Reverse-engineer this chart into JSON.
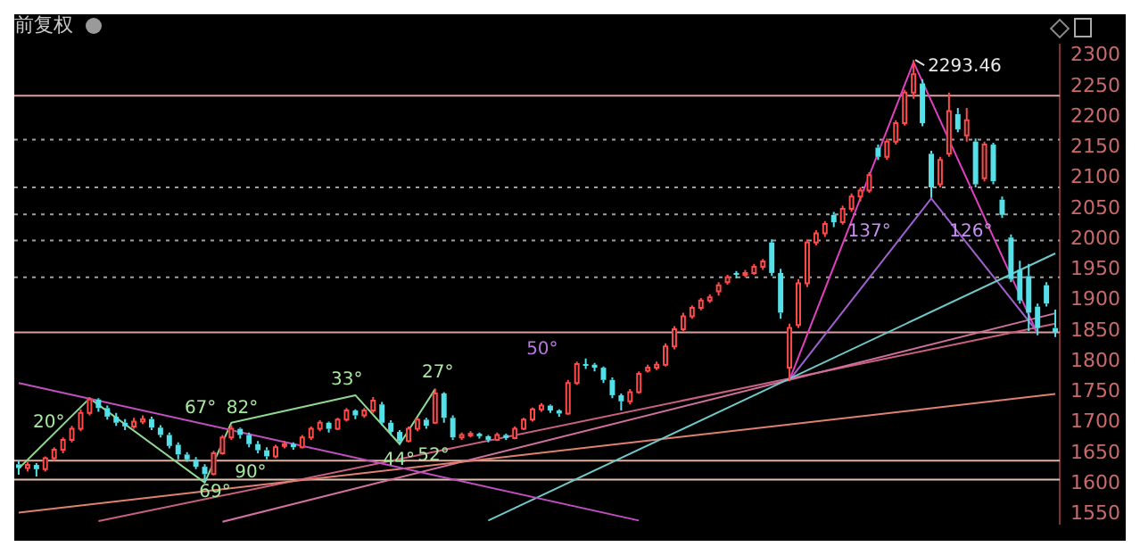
{
  "chart_data": {
    "type": "candlestick",
    "title": "前复权",
    "categories": [
      null,
      null,
      null,
      null,
      null,
      null,
      null,
      null,
      null,
      null,
      null,
      null,
      null,
      null,
      null,
      null,
      null,
      null,
      null,
      null,
      null,
      null,
      null,
      null,
      null,
      null,
      null,
      null,
      null,
      null,
      null,
      null,
      null,
      null,
      null,
      null,
      null,
      null,
      null,
      null,
      null,
      null,
      null,
      null,
      null,
      null,
      null,
      null,
      null,
      null,
      null,
      null,
      null,
      null,
      null,
      null,
      null,
      null,
      null,
      null,
      null,
      null,
      null,
      null,
      null,
      null,
      null,
      null,
      null,
      null,
      null,
      null,
      null,
      null,
      null,
      null,
      null,
      null,
      null,
      null,
      null,
      null,
      null,
      null,
      null,
      null,
      null,
      null,
      null,
      null,
      null,
      null,
      null,
      null,
      null,
      null,
      null,
      null,
      null,
      null,
      null,
      null,
      null,
      null,
      null,
      null,
      null,
      null,
      null,
      null,
      null,
      null,
      null,
      null,
      null,
      null,
      null,
      null
    ],
    "ohlc": [
      [
        1632,
        1638,
        1615,
        1626
      ],
      [
        1626,
        1636,
        1620,
        1631
      ],
      [
        1631,
        1634,
        1612,
        1624
      ],
      [
        1624,
        1645,
        1620,
        1642
      ],
      [
        1642,
        1660,
        1638,
        1656
      ],
      [
        1656,
        1676,
        1650,
        1672
      ],
      [
        1672,
        1695,
        1668,
        1690
      ],
      [
        1690,
        1722,
        1686,
        1716
      ],
      [
        1716,
        1742,
        1712,
        1738
      ],
      [
        1738,
        1740,
        1718,
        1724
      ],
      [
        1724,
        1728,
        1705,
        1710
      ],
      [
        1710,
        1716,
        1695,
        1700
      ],
      [
        1700,
        1706,
        1688,
        1694
      ],
      [
        1694,
        1708,
        1690,
        1702
      ],
      [
        1702,
        1712,
        1698,
        1706
      ],
      [
        1706,
        1710,
        1688,
        1692
      ],
      [
        1692,
        1696,
        1676,
        1680
      ],
      [
        1680,
        1684,
        1658,
        1662
      ],
      [
        1664,
        1668,
        1640,
        1648
      ],
      [
        1648,
        1652,
        1636,
        1640
      ],
      [
        1640,
        1644,
        1624,
        1628
      ],
      [
        1628,
        1632,
        1603,
        1616
      ],
      [
        1616,
        1654,
        1614,
        1650
      ],
      [
        1650,
        1680,
        1648,
        1676
      ],
      [
        1676,
        1696,
        1672,
        1690
      ],
      [
        1690,
        1692,
        1674,
        1680
      ],
      [
        1680,
        1684,
        1660,
        1665
      ],
      [
        1665,
        1670,
        1650,
        1655
      ],
      [
        1655,
        1660,
        1640,
        1645
      ],
      [
        1645,
        1664,
        1642,
        1660
      ],
      [
        1662,
        1670,
        1658,
        1665
      ],
      [
        1665,
        1668,
        1656,
        1660
      ],
      [
        1660,
        1680,
        1658,
        1676
      ],
      [
        1676,
        1694,
        1672,
        1690
      ],
      [
        1690,
        1704,
        1686,
        1700
      ],
      [
        1700,
        1702,
        1684,
        1690
      ],
      [
        1690,
        1708,
        1688,
        1705
      ],
      [
        1705,
        1724,
        1702,
        1720
      ],
      [
        1720,
        1722,
        1706,
        1712
      ],
      [
        1712,
        1724,
        1708,
        1720
      ],
      [
        1720,
        1742,
        1716,
        1736
      ],
      [
        1730,
        1734,
        1696,
        1700
      ],
      [
        1700,
        1704,
        1680,
        1685
      ],
      [
        1685,
        1688,
        1664,
        1670
      ],
      [
        1670,
        1694,
        1668,
        1690
      ],
      [
        1690,
        1708,
        1686,
        1705
      ],
      [
        1705,
        1708,
        1690,
        1695
      ],
      [
        1700,
        1756,
        1698,
        1748
      ],
      [
        1748,
        1750,
        1700,
        1708
      ],
      [
        1708,
        1712,
        1672,
        1676
      ],
      [
        1676,
        1684,
        1672,
        1680
      ],
      [
        1680,
        1686,
        1676,
        1682
      ],
      [
        1682,
        1684,
        1674,
        1678
      ],
      [
        1678,
        1680,
        1668,
        1672
      ],
      [
        1672,
        1684,
        1670,
        1680
      ],
      [
        1680,
        1682,
        1672,
        1675
      ],
      [
        1675,
        1694,
        1673,
        1690
      ],
      [
        1690,
        1708,
        1688,
        1705
      ],
      [
        1705,
        1725,
        1702,
        1722
      ],
      [
        1722,
        1732,
        1718,
        1728
      ],
      [
        1728,
        1730,
        1716,
        1720
      ],
      [
        1720,
        1722,
        1710,
        1715
      ],
      [
        1715,
        1770,
        1713,
        1765
      ],
      [
        1765,
        1800,
        1762,
        1796
      ],
      [
        1796,
        1805,
        1788,
        1795
      ],
      [
        1795,
        1798,
        1784,
        1790
      ],
      [
        1790,
        1792,
        1765,
        1770
      ],
      [
        1770,
        1774,
        1740,
        1745
      ],
      [
        1745,
        1748,
        1720,
        1735
      ],
      [
        1735,
        1755,
        1730,
        1750
      ],
      [
        1750,
        1784,
        1748,
        1780
      ],
      [
        1785,
        1795,
        1782,
        1790
      ],
      [
        1790,
        1800,
        1786,
        1795
      ],
      [
        1795,
        1830,
        1792,
        1825
      ],
      [
        1825,
        1858,
        1820,
        1853
      ],
      [
        1853,
        1880,
        1850,
        1874
      ],
      [
        1874,
        1892,
        1870,
        1888
      ],
      [
        1888,
        1904,
        1884,
        1900
      ],
      [
        1900,
        1910,
        1896,
        1905
      ],
      [
        1915,
        1930,
        1908,
        1925
      ],
      [
        1930,
        1942,
        1926,
        1938
      ],
      [
        1945,
        1948,
        1936,
        1942
      ],
      [
        1942,
        1950,
        1938,
        1945
      ],
      [
        1945,
        1960,
        1942,
        1955
      ],
      [
        1955,
        1968,
        1950,
        1964
      ],
      [
        1995,
        2000,
        1940,
        1945
      ],
      [
        1945,
        1952,
        1870,
        1880
      ],
      [
        1790,
        1862,
        1768,
        1855
      ],
      [
        1860,
        1935,
        1855,
        1928
      ],
      [
        1928,
        2000,
        1922,
        1995
      ],
      [
        1995,
        2015,
        1990,
        2010
      ],
      [
        2010,
        2030,
        2004,
        2025
      ],
      [
        2040,
        2045,
        2020,
        2028
      ],
      [
        2028,
        2055,
        2024,
        2050
      ],
      [
        2050,
        2075,
        2045,
        2070
      ],
      [
        2070,
        2085,
        2062,
        2080
      ],
      [
        2080,
        2110,
        2076,
        2105
      ],
      [
        2150,
        2155,
        2130,
        2135
      ],
      [
        2135,
        2165,
        2130,
        2160
      ],
      [
        2160,
        2195,
        2155,
        2190
      ],
      [
        2190,
        2245,
        2186,
        2240
      ],
      [
        2240,
        2293.46,
        2230,
        2270
      ],
      [
        2255,
        2262,
        2185,
        2190
      ],
      [
        2140,
        2145,
        2068,
        2085
      ],
      [
        2090,
        2135,
        2085,
        2130
      ],
      [
        2140,
        2240,
        2135,
        2210
      ],
      [
        2205,
        2215,
        2175,
        2180
      ],
      [
        2170,
        2215,
        2160,
        2195
      ],
      [
        2160,
        2165,
        2085,
        2090
      ],
      [
        2100,
        2160,
        2095,
        2155
      ],
      [
        2155,
        2158,
        2090,
        2095
      ],
      [
        2065,
        2070,
        2035,
        2040
      ],
      [
        2003,
        2008,
        1930,
        1935
      ],
      [
        1950,
        1965,
        1895,
        1900
      ],
      [
        1940,
        1960,
        1850,
        1880
      ],
      [
        1890,
        1895,
        1843,
        1855
      ],
      [
        1925,
        1930,
        1890,
        1895
      ],
      [
        1855,
        1885,
        1840,
        1848
      ]
    ],
    "series": [
      {
        "type": "line",
        "color": "#c050c0",
        "values": [
          1765,
          null,
          null,
          null,
          null,
          null,
          null,
          null,
          null,
          null,
          null,
          null,
          null,
          null,
          null,
          null,
          null,
          null,
          null,
          null,
          null,
          null,
          null,
          null,
          null,
          null,
          null,
          null,
          null,
          null,
          null,
          null,
          null,
          null,
          null,
          null,
          null,
          null,
          null,
          null,
          null,
          null,
          null,
          null,
          null,
          null,
          null,
          null,
          null,
          null,
          null,
          null,
          null,
          null,
          null,
          null,
          null,
          null,
          null,
          null,
          null,
          null,
          null,
          null,
          null,
          null,
          null,
          null,
          null,
          null,
          1540,
          null,
          null,
          null,
          null,
          null,
          null,
          null,
          null,
          null,
          null,
          null,
          null,
          null,
          null,
          null,
          null,
          null,
          null,
          null,
          null,
          null,
          null,
          null,
          null,
          null,
          null,
          null,
          null,
          null,
          null,
          null,
          null,
          null,
          null,
          null,
          null,
          null,
          null,
          null,
          null,
          null,
          null,
          null,
          null,
          null,
          null,
          null
        ]
      },
      {
        "type": "line",
        "color": "#70c8c8",
        "values": [
          null,
          null,
          null,
          null,
          null,
          null,
          null,
          null,
          null,
          null,
          null,
          null,
          null,
          null,
          null,
          null,
          null,
          null,
          null,
          null,
          null,
          null,
          null,
          null,
          null,
          null,
          null,
          null,
          null,
          null,
          null,
          null,
          null,
          null,
          null,
          null,
          null,
          null,
          null,
          null,
          null,
          null,
          null,
          null,
          null,
          null,
          null,
          null,
          null,
          null,
          null,
          null,
          null,
          1540,
          null,
          null,
          null,
          null,
          null,
          null,
          null,
          null,
          null,
          null,
          null,
          null,
          null,
          null,
          null,
          null,
          null,
          null,
          null,
          null,
          null,
          null,
          null,
          null,
          null,
          null,
          null,
          null,
          null,
          null,
          null,
          null,
          null,
          null,
          null,
          null,
          null,
          null,
          null,
          null,
          null,
          null,
          null,
          null,
          null,
          null,
          null,
          null,
          null,
          null,
          null,
          null,
          null,
          null,
          null,
          null,
          null,
          null,
          null,
          null,
          null,
          null,
          null,
          1977
        ]
      },
      {
        "type": "line",
        "color": "#e08070",
        "values": [
          1553,
          null,
          null,
          null,
          null,
          null,
          null,
          null,
          null,
          null,
          null,
          null,
          null,
          null,
          null,
          null,
          null,
          null,
          null,
          null,
          null,
          null,
          null,
          null,
          null,
          null,
          null,
          null,
          null,
          null,
          null,
          null,
          null,
          null,
          null,
          null,
          null,
          null,
          null,
          null,
          null,
          null,
          null,
          null,
          null,
          null,
          null,
          null,
          null,
          null,
          null,
          null,
          null,
          null,
          null,
          null,
          null,
          null,
          null,
          null,
          null,
          null,
          null,
          null,
          null,
          null,
          null,
          null,
          null,
          null,
          null,
          null,
          null,
          null,
          null,
          null,
          null,
          null,
          null,
          null,
          null,
          null,
          null,
          null,
          null,
          null,
          null,
          null,
          null,
          null,
          null,
          null,
          null,
          null,
          null,
          null,
          null,
          null,
          null,
          null,
          null,
          null,
          null,
          null,
          null,
          null,
          null,
          null,
          null,
          null,
          null,
          null,
          null,
          null,
          null,
          null,
          null,
          1747
        ]
      },
      {
        "type": "line",
        "color": "#d070a0",
        "values": [
          null,
          null,
          null,
          null,
          null,
          null,
          null,
          null,
          null,
          null,
          null,
          null,
          null,
          null,
          null,
          null,
          null,
          null,
          null,
          null,
          null,
          null,
          null,
          1538,
          null,
          null,
          null,
          null,
          null,
          null,
          null,
          null,
          null,
          null,
          null,
          null,
          null,
          null,
          null,
          null,
          null,
          null,
          null,
          null,
          null,
          null,
          null,
          null,
          null,
          null,
          null,
          null,
          null,
          null,
          null,
          null,
          null,
          null,
          null,
          null,
          null,
          null,
          null,
          null,
          null,
          null,
          null,
          null,
          null,
          null,
          null,
          null,
          null,
          null,
          null,
          null,
          null,
          null,
          null,
          null,
          null,
          null,
          null,
          null,
          null,
          null,
          null,
          null,
          null,
          null,
          null,
          null,
          null,
          null,
          null,
          null,
          null,
          null,
          null,
          null,
          null,
          null,
          null,
          null,
          null,
          null,
          null,
          null,
          null,
          null,
          null,
          null,
          null,
          null,
          null,
          null,
          null,
          1879
        ]
      },
      {
        "type": "line",
        "color": "#c86080",
        "values": [
          null,
          null,
          null,
          null,
          null,
          null,
          null,
          null,
          null,
          1539,
          null,
          null,
          null,
          null,
          null,
          null,
          null,
          null,
          null,
          null,
          null,
          null,
          null,
          null,
          null,
          null,
          null,
          null,
          null,
          null,
          null,
          null,
          null,
          null,
          null,
          null,
          null,
          null,
          null,
          null,
          null,
          null,
          null,
          null,
          null,
          null,
          null,
          null,
          null,
          null,
          null,
          null,
          null,
          null,
          null,
          null,
          null,
          null,
          null,
          null,
          null,
          null,
          null,
          null,
          null,
          null,
          null,
          null,
          null,
          null,
          null,
          null,
          null,
          null,
          null,
          null,
          null,
          null,
          null,
          null,
          null,
          null,
          null,
          null,
          null,
          null,
          null,
          null,
          null,
          null,
          null,
          null,
          null,
          null,
          null,
          null,
          null,
          null,
          null,
          null,
          null,
          null,
          null,
          null,
          null,
          null,
          null,
          null,
          null,
          null,
          null,
          null,
          null,
          null,
          null,
          null,
          null,
          1862
        ]
      },
      {
        "type": "line",
        "color": "#e040c0",
        "values": [
          null,
          null,
          null,
          null,
          null,
          null,
          null,
          null,
          null,
          null,
          null,
          null,
          null,
          null,
          null,
          null,
          null,
          null,
          null,
          null,
          null,
          null,
          null,
          null,
          null,
          null,
          null,
          null,
          null,
          null,
          null,
          null,
          null,
          null,
          null,
          null,
          null,
          null,
          null,
          null,
          null,
          null,
          null,
          null,
          null,
          null,
          null,
          null,
          null,
          null,
          null,
          null,
          null,
          null,
          null,
          null,
          null,
          null,
          null,
          null,
          null,
          null,
          null,
          null,
          null,
          null,
          null,
          null,
          null,
          null,
          null,
          null,
          null,
          null,
          null,
          null,
          null,
          null,
          null,
          null,
          null,
          null,
          null,
          null,
          null,
          null,
          null,
          1770,
          null,
          null,
          null,
          null,
          null,
          null,
          null,
          null,
          null,
          null,
          null,
          null,
          null,
          2290,
          null,
          null,
          null,
          null,
          null,
          null,
          null,
          null,
          null,
          null,
          null,
          null,
          null,
          1845,
          null,
          null
        ]
      },
      {
        "type": "line",
        "color": "#a060d0",
        "values": [
          null,
          null,
          null,
          null,
          null,
          null,
          null,
          null,
          null,
          null,
          null,
          null,
          null,
          null,
          null,
          null,
          null,
          null,
          null,
          null,
          null,
          null,
          null,
          null,
          null,
          null,
          null,
          null,
          null,
          null,
          null,
          null,
          null,
          null,
          null,
          null,
          null,
          null,
          null,
          null,
          null,
          null,
          null,
          null,
          null,
          null,
          null,
          null,
          null,
          null,
          null,
          null,
          null,
          null,
          null,
          null,
          null,
          null,
          null,
          null,
          null,
          null,
          null,
          null,
          null,
          null,
          null,
          null,
          null,
          null,
          null,
          null,
          null,
          null,
          null,
          null,
          null,
          null,
          null,
          null,
          null,
          null,
          null,
          null,
          null,
          null,
          null,
          1770,
          null,
          null,
          null,
          null,
          null,
          null,
          null,
          null,
          null,
          null,
          null,
          null,
          null,
          null,
          null,
          2067,
          null,
          null,
          null,
          null,
          null,
          null,
          null,
          null,
          null,
          null,
          null,
          1848,
          null,
          null
        ]
      },
      {
        "type": "line",
        "color": "#90d890",
        "values": [
          1625,
          null,
          null,
          null,
          null,
          null,
          null,
          null,
          1740,
          null,
          null,
          null,
          null,
          null,
          null,
          null,
          null,
          null,
          null,
          null,
          null,
          1602,
          null,
          null,
          1700,
          null,
          null,
          null,
          null,
          null,
          null,
          null,
          null,
          null,
          null,
          null,
          null,
          null,
          1745,
          null,
          null,
          null,
          null,
          1665,
          null,
          null,
          null,
          1755,
          null,
          null,
          null,
          null,
          null,
          null,
          null,
          null,
          null,
          null,
          null,
          null,
          null,
          null,
          null,
          null,
          null,
          null,
          null,
          null,
          null,
          null,
          null,
          null,
          null,
          null,
          null,
          null,
          null,
          null,
          null,
          null,
          null,
          null,
          null,
          null,
          null,
          null,
          null,
          null,
          null,
          null,
          null,
          null,
          null,
          null,
          null,
          null,
          null,
          null,
          null,
          null,
          null,
          null,
          null,
          null,
          null,
          null,
          null,
          null,
          null,
          null,
          null,
          null,
          null,
          null,
          null,
          null,
          null,
          null
        ]
      }
    ],
    "ylim": [
      1535,
      2318
    ],
    "yticks": [
      1550,
      1600,
      1650,
      1700,
      1750,
      1800,
      1850,
      1900,
      1950,
      2000,
      2050,
      2100,
      2150,
      2200,
      2250,
      2300
    ],
    "ref_lines": [
      {
        "axis": "y",
        "value": 2235,
        "color": "#d9a0a0",
        "line_style": "solid"
      },
      {
        "axis": "y",
        "value": 1848,
        "color": "#d9a0a0",
        "line_style": "solid"
      },
      {
        "axis": "y",
        "value": 1638,
        "color": "#e0b0a0",
        "line_style": "solid"
      },
      {
        "axis": "y",
        "value": 1607,
        "color": "#e0c0b0",
        "line_style": "solid"
      },
      {
        "axis": "y",
        "value": 2163,
        "color": "#a0a0a0",
        "line_style": "dotted"
      },
      {
        "axis": "y",
        "value": 2085,
        "color": "#a0a0a0",
        "line_style": "dotted"
      },
      {
        "axis": "y",
        "value": 2041,
        "color": "#a0a0a0",
        "line_style": "dotted"
      },
      {
        "axis": "y",
        "value": 1998,
        "color": "#a0a0a0",
        "line_style": "dotted"
      },
      {
        "axis": "y",
        "value": 1938,
        "color": "#a0a0a0",
        "line_style": "dotted"
      }
    ],
    "annotations": [
      "2293.46",
      "50°",
      "137°",
      "126°",
      "20°",
      "67°",
      "82°",
      "33°",
      "27°",
      "90°",
      "69°",
      "44°",
      "52°"
    ],
    "grid": false,
    "legend": false,
    "tick_labels": "y",
    "marker": "none"
  }
}
